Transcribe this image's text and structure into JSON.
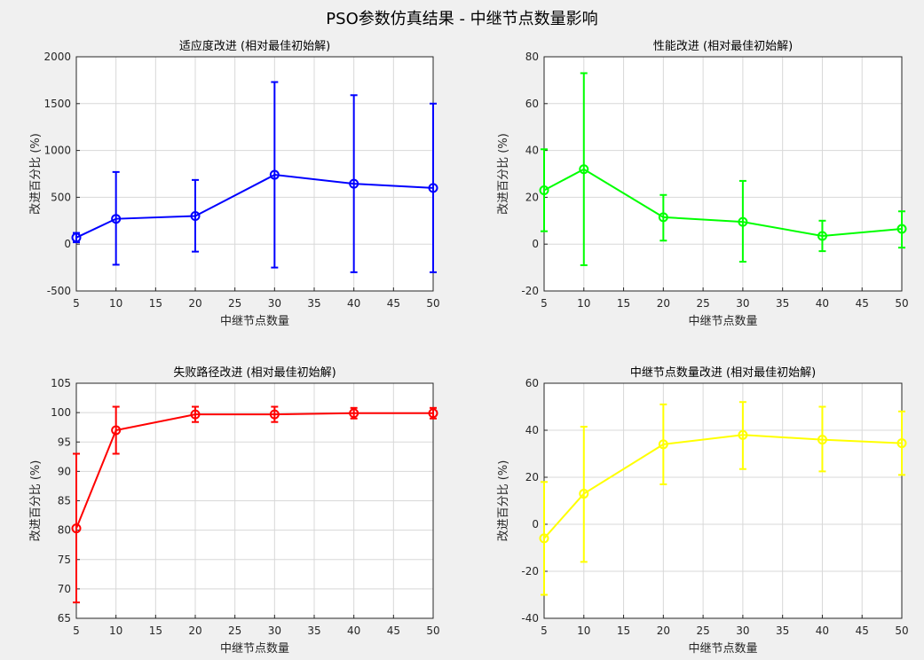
{
  "figure": {
    "title": "PSO参数仿真结果 - 中继节点数量影响"
  },
  "chart_data": [
    {
      "type": "line",
      "title": "适应度改进 (相对最佳初始解)",
      "xlabel": "中继节点数量",
      "ylabel": "改进百分比 (%)",
      "x": [
        5,
        10,
        20,
        30,
        40,
        50
      ],
      "series": [
        {
          "values": [
            70,
            270,
            300,
            740,
            645,
            600
          ],
          "err_lower": [
            20,
            -220,
            -80,
            -250,
            -300,
            -300
          ],
          "err_upper": [
            120,
            770,
            685,
            1730,
            1590,
            1500
          ],
          "color": "#0000ff",
          "marker": "circle"
        }
      ],
      "xlim": [
        5,
        50
      ],
      "ylim": [
        -500,
        2000
      ],
      "xticks": [
        5,
        10,
        15,
        20,
        25,
        30,
        35,
        40,
        45,
        50
      ],
      "yticks": [
        -500,
        0,
        500,
        1000,
        1500,
        2000
      ],
      "grid": true
    },
    {
      "type": "line",
      "title": "性能改进 (相对最佳初始解)",
      "xlabel": "中继节点数量",
      "ylabel": "改进百分比 (%)",
      "x": [
        5,
        10,
        20,
        30,
        40,
        50
      ],
      "series": [
        {
          "values": [
            23,
            32,
            11.5,
            9.5,
            3.5,
            6.5
          ],
          "err_lower": [
            5.5,
            -9,
            1.5,
            -7.5,
            -3,
            -1.5
          ],
          "err_upper": [
            40.5,
            73,
            21,
            27,
            10,
            14
          ],
          "color": "#00ff00",
          "marker": "circle"
        }
      ],
      "xlim": [
        5,
        50
      ],
      "ylim": [
        -20,
        80
      ],
      "xticks": [
        5,
        10,
        15,
        20,
        25,
        30,
        35,
        40,
        45,
        50
      ],
      "yticks": [
        -20,
        0,
        20,
        40,
        60,
        80
      ],
      "grid": true
    },
    {
      "type": "line",
      "title": "失败路径改进 (相对最佳初始解)",
      "xlabel": "中继节点数量",
      "ylabel": "改进百分比 (%)",
      "x": [
        5,
        10,
        20,
        30,
        40,
        50
      ],
      "series": [
        {
          "values": [
            80.3,
            97,
            99.7,
            99.7,
            99.9,
            99.9
          ],
          "err_lower": [
            67.7,
            93,
            98.4,
            98.4,
            99,
            99
          ],
          "err_upper": [
            93,
            101,
            101,
            101,
            100.8,
            100.8
          ],
          "color": "#ff0000",
          "marker": "circle"
        }
      ],
      "xlim": [
        5,
        50
      ],
      "ylim": [
        65,
        105
      ],
      "xticks": [
        5,
        10,
        15,
        20,
        25,
        30,
        35,
        40,
        45,
        50
      ],
      "yticks": [
        65,
        70,
        75,
        80,
        85,
        90,
        95,
        100,
        105
      ],
      "grid": true
    },
    {
      "type": "line",
      "title": "中继节点数量改进 (相对最佳初始解)",
      "xlabel": "中继节点数量",
      "ylabel": "改进百分比 (%)",
      "x": [
        5,
        10,
        20,
        30,
        40,
        50
      ],
      "series": [
        {
          "values": [
            -6,
            13,
            34,
            38,
            36,
            34.5
          ],
          "err_lower": [
            -30,
            -16,
            17,
            23.5,
            22.5,
            21
          ],
          "err_upper": [
            18,
            41.5,
            51,
            52,
            50,
            48
          ],
          "color": "#ffff00",
          "marker": "circle"
        }
      ],
      "xlim": [
        5,
        50
      ],
      "ylim": [
        -40,
        60
      ],
      "xticks": [
        5,
        10,
        15,
        20,
        25,
        30,
        35,
        40,
        45,
        50
      ],
      "yticks": [
        -40,
        -20,
        0,
        20,
        40,
        60
      ],
      "grid": true
    }
  ]
}
